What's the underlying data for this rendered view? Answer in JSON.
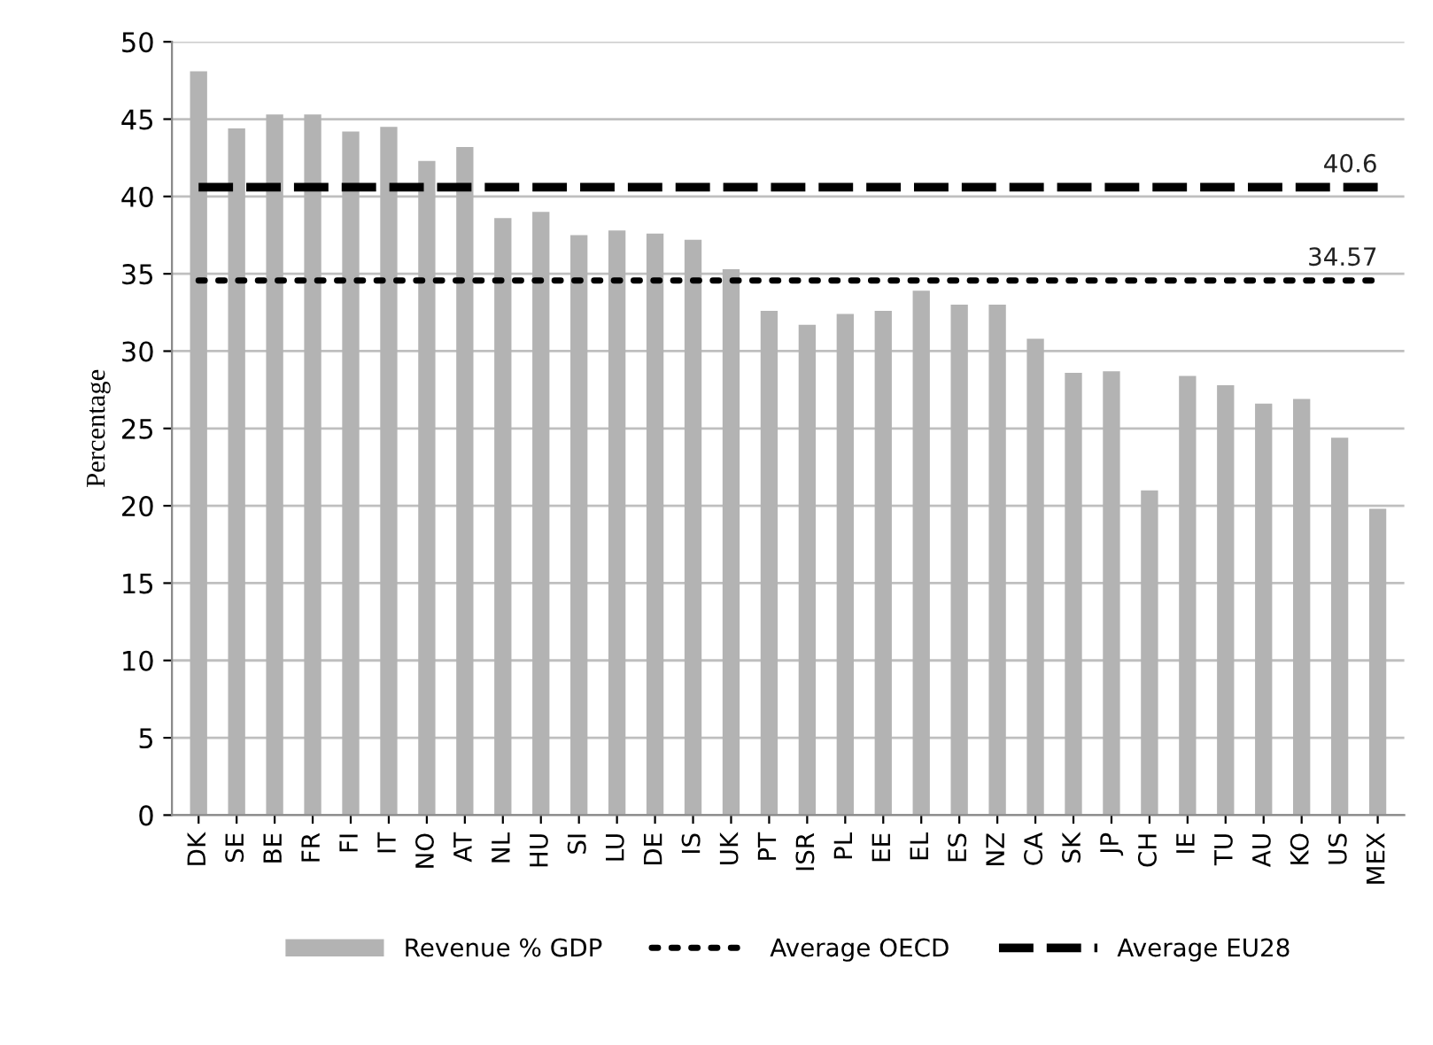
{
  "chart_data": {
    "type": "bar",
    "ylabel": "Percentage",
    "categories": [
      "DK",
      "SE",
      "BE",
      "FR",
      "FI",
      "IT",
      "NO",
      "AT",
      "NL",
      "HU",
      "SI",
      "LU",
      "DE",
      "IS",
      "UK",
      "PT",
      "ISR",
      "PL",
      "EE",
      "EL",
      "ES",
      "NZ",
      "CA",
      "SK",
      "JP",
      "CH",
      "IE",
      "TU",
      "AU",
      "KO",
      "US",
      "MEX"
    ],
    "series": [
      {
        "name": "Revenue % GDP",
        "color": "#b3b3b3",
        "values": [
          48.1,
          44.4,
          45.3,
          45.3,
          44.2,
          44.5,
          42.3,
          43.2,
          38.6,
          39.0,
          37.5,
          37.8,
          37.6,
          37.2,
          35.3,
          32.6,
          31.7,
          32.4,
          32.6,
          33.9,
          33.0,
          33.0,
          30.8,
          28.6,
          28.7,
          21.0,
          28.4,
          27.8,
          26.6,
          26.9,
          24.4,
          19.8
        ]
      },
      {
        "name": "Average OECD",
        "type": "line",
        "line_style": "dotted",
        "color": "#000000",
        "values": [
          34.57,
          34.57,
          34.57,
          34.57,
          34.57,
          34.57,
          34.57,
          34.57,
          34.57,
          34.57,
          34.57,
          34.57,
          34.57,
          34.57,
          34.57,
          34.57,
          34.57,
          34.57,
          34.57,
          34.57,
          34.57,
          34.57,
          34.57,
          34.57,
          34.57,
          34.57,
          34.57,
          34.57,
          34.57,
          34.57,
          34.57,
          34.57
        ],
        "value_labels": [
          null,
          null,
          null,
          null,
          null,
          null,
          null,
          null,
          null,
          null,
          null,
          null,
          null,
          null,
          null,
          null,
          null,
          null,
          null,
          null,
          null,
          null,
          null,
          null,
          null,
          null,
          null,
          null,
          null,
          null,
          null,
          "34.57"
        ]
      },
      {
        "name": "Average EU28",
        "type": "line",
        "line_style": "dashed",
        "color": "#000000",
        "values": [
          40.6,
          40.6,
          40.6,
          40.6,
          40.6,
          40.6,
          40.6,
          40.6,
          40.6,
          40.6,
          40.6,
          40.6,
          40.6,
          40.6,
          40.6,
          40.6,
          40.6,
          40.6,
          40.6,
          40.6,
          40.6,
          40.6,
          40.6,
          40.6,
          40.6,
          40.6,
          40.6,
          40.6,
          40.6,
          40.6,
          40.6,
          40.6
        ],
        "value_labels": [
          null,
          null,
          null,
          null,
          null,
          null,
          null,
          null,
          null,
          null,
          null,
          null,
          null,
          null,
          null,
          null,
          null,
          null,
          null,
          null,
          null,
          null,
          null,
          null,
          null,
          null,
          null,
          null,
          null,
          null,
          null,
          "40.6"
        ]
      }
    ],
    "ylim": [
      0,
      50
    ],
    "yticks": [
      0,
      5,
      10,
      15,
      20,
      25,
      30,
      35,
      40,
      45,
      50
    ],
    "grid": "y",
    "legend": "bottom"
  }
}
